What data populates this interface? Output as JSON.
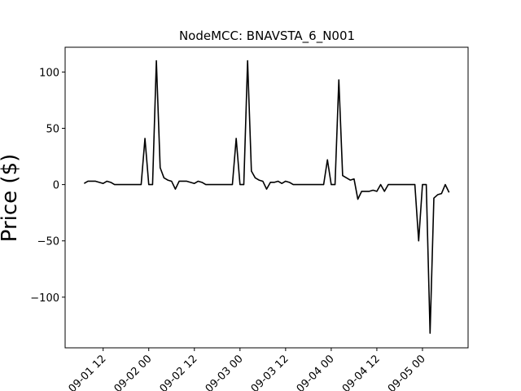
{
  "chart_data": {
    "type": "line",
    "title": "NodeMCC: BNAVSTA_6_N001",
    "y_label": "Price ($)",
    "x": [
      "09-01 07",
      "09-01 08",
      "09-01 09",
      "09-01 10",
      "09-01 11",
      "09-01 12",
      "09-01 13",
      "09-01 14",
      "09-01 15",
      "09-01 16",
      "09-01 17",
      "09-01 18",
      "09-01 19",
      "09-01 20",
      "09-01 21",
      "09-01 22",
      "09-01 23",
      "09-02 00",
      "09-02 01",
      "09-02 02",
      "09-02 03",
      "09-02 04",
      "09-02 05",
      "09-02 06",
      "09-02 07",
      "09-02 08",
      "09-02 09",
      "09-02 10",
      "09-02 11",
      "09-02 12",
      "09-02 13",
      "09-02 14",
      "09-02 15",
      "09-02 16",
      "09-02 17",
      "09-02 18",
      "09-02 19",
      "09-02 20",
      "09-02 21",
      "09-02 22",
      "09-02 23",
      "09-03 00",
      "09-03 01",
      "09-03 02",
      "09-03 03",
      "09-03 04",
      "09-03 05",
      "09-03 06",
      "09-03 07",
      "09-03 08",
      "09-03 09",
      "09-03 10",
      "09-03 11",
      "09-03 12",
      "09-03 13",
      "09-03 14",
      "09-03 15",
      "09-03 16",
      "09-03 17",
      "09-03 18",
      "09-03 19",
      "09-03 20",
      "09-03 21",
      "09-03 22",
      "09-03 23",
      "09-04 00",
      "09-04 01",
      "09-04 02",
      "09-04 03",
      "09-04 04",
      "09-04 05",
      "09-04 06",
      "09-04 07",
      "09-04 08",
      "09-04 09",
      "09-04 10",
      "09-04 11",
      "09-04 12",
      "09-04 13",
      "09-04 14",
      "09-04 15",
      "09-04 16",
      "09-04 17",
      "09-04 18",
      "09-04 19",
      "09-04 20",
      "09-04 21",
      "09-04 22",
      "09-04 23",
      "09-05 00",
      "09-05 01",
      "09-05 02",
      "09-05 03",
      "09-05 04",
      "09-05 05",
      "09-05 06",
      "09-05 07"
    ],
    "series": [
      {
        "color": "#000000",
        "values": [
          1,
          3,
          3,
          3,
          2,
          1,
          3,
          2,
          0,
          0,
          0,
          0,
          0,
          0,
          0,
          0,
          41,
          0,
          0,
          110,
          15,
          6,
          4,
          3,
          -4,
          3,
          3,
          3,
          2,
          1,
          3,
          2,
          0,
          0,
          0,
          0,
          0,
          0,
          0,
          0,
          41,
          0,
          0,
          110,
          12,
          6,
          4,
          3,
          -4,
          2,
          2,
          3,
          1,
          3,
          2,
          0,
          0,
          0,
          0,
          0,
          0,
          0,
          0,
          0,
          22,
          0,
          0,
          93,
          8,
          6,
          4,
          5,
          -13,
          -6,
          -6,
          -6,
          -5,
          -6,
          0,
          -6,
          0,
          0,
          0,
          0,
          0,
          0,
          0,
          0,
          -50,
          0,
          0,
          -132,
          -12,
          -9,
          -8,
          0,
          -7
        ]
      }
    ],
    "xlim": [
      "09-01 02",
      "09-05 12"
    ],
    "xticks": [
      "09-01 12",
      "09-02 00",
      "09-02 12",
      "09-03 00",
      "09-03 12",
      "09-04 00",
      "09-04 12",
      "09-05 00"
    ],
    "ylim": [
      -145,
      122
    ],
    "yticks": [
      {
        "value": -100,
        "label": "−100"
      },
      {
        "value": -50,
        "label": "−50"
      },
      0,
      50,
      100
    ]
  }
}
